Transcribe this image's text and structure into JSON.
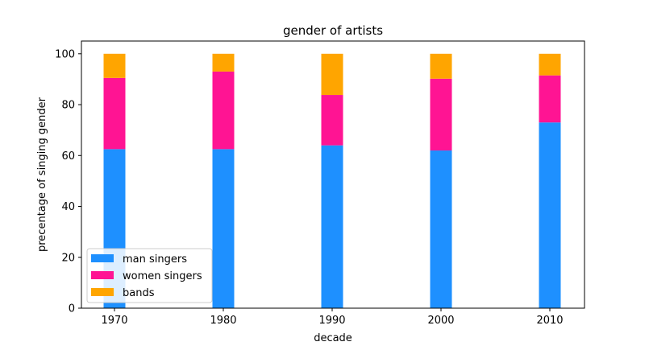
{
  "chart_data": {
    "type": "bar",
    "stacked": true,
    "title": "gender of artists",
    "xlabel": "decade",
    "ylabel": "precentage of singing gender",
    "categories": [
      "1970",
      "1980",
      "1990",
      "2000",
      "2010"
    ],
    "ylim": [
      0,
      105
    ],
    "yticks": [
      0,
      20,
      40,
      60,
      80,
      100
    ],
    "grid": false,
    "legend_position": "lower-left",
    "series": [
      {
        "name": "man singers",
        "color": "#1e90ff",
        "values": [
          62.5,
          62.5,
          64.0,
          62.0,
          73.0
        ]
      },
      {
        "name": "women singers",
        "color": "#ff1493",
        "values": [
          28.0,
          30.5,
          19.8,
          28.2,
          18.5
        ]
      },
      {
        "name": "bands",
        "color": "#ffa500",
        "values": [
          9.5,
          7.0,
          16.2,
          9.8,
          8.5
        ]
      }
    ]
  }
}
